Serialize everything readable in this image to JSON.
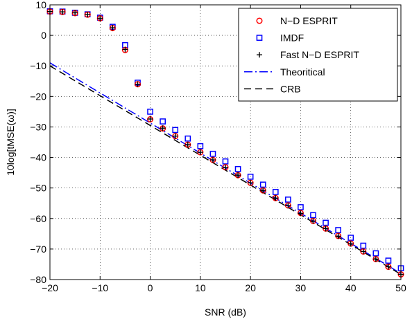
{
  "chart_data": {
    "type": "line",
    "xlabel": "SNR (dB)",
    "ylabel": "10log[tMSE(ω)]",
    "xlim": [
      -20,
      50
    ],
    "ylim": [
      -80,
      10
    ],
    "xticks": [
      -20,
      -10,
      0,
      10,
      20,
      30,
      40,
      50
    ],
    "yticks": [
      10,
      0,
      -10,
      -20,
      -30,
      -40,
      -50,
      -60,
      -70,
      -80
    ],
    "xtick_labels": [
      "−20",
      "−10",
      "0",
      "10",
      "20",
      "30",
      "40",
      "50"
    ],
    "ytick_labels": [
      "10",
      "0",
      "−10",
      "−20",
      "−30",
      "−40",
      "−50",
      "−60",
      "−70",
      "−80"
    ],
    "grid": true,
    "grid_style": "dotted",
    "legend_position": "top-right",
    "series": [
      {
        "name": "N−D ESPRIT",
        "marker": "circle",
        "color": "#ff0000",
        "x": [
          -20,
          -17.5,
          -15,
          -12.5,
          -10,
          -7.5,
          -5,
          -2.5,
          0,
          2.5,
          5,
          7.5,
          10,
          12.5,
          15,
          17.5,
          20,
          22.5,
          25,
          27.5,
          30,
          32.5,
          35,
          37.5,
          40,
          42.5,
          45,
          47.5,
          50
        ],
        "y": [
          7.8,
          7.7,
          7.3,
          6.8,
          5.6,
          2.4,
          -4.8,
          -16.0,
          -27.5,
          -30.5,
          -33.0,
          -35.8,
          -38.3,
          -40.8,
          -43.2,
          -45.8,
          -48.3,
          -50.8,
          -53.3,
          -55.7,
          -58.2,
          -60.8,
          -63.3,
          -65.7,
          -68.2,
          -70.8,
          -73.3,
          -75.8,
          -78.3
        ]
      },
      {
        "name": "IMDF",
        "marker": "square",
        "color": "#0000ff",
        "x": [
          -20,
          -17.5,
          -15,
          -12.5,
          -10,
          -7.5,
          -5,
          -2.5,
          0,
          2.5,
          5,
          7.5,
          10,
          12.5,
          15,
          17.5,
          20,
          22.5,
          25,
          27.5,
          30,
          32.5,
          35,
          37.5,
          40,
          42.5,
          45,
          47.5,
          50
        ],
        "y": [
          7.9,
          7.8,
          7.4,
          6.9,
          5.8,
          2.8,
          -3.2,
          -15.5,
          -25.0,
          -28.2,
          -31.0,
          -33.8,
          -36.3,
          -38.8,
          -41.3,
          -43.8,
          -46.3,
          -48.9,
          -51.3,
          -53.8,
          -56.3,
          -58.9,
          -61.4,
          -63.8,
          -66.3,
          -68.9,
          -71.4,
          -73.8,
          -76.3
        ]
      },
      {
        "name": "Fast N−D ESPRIT",
        "marker": "plus",
        "color": "#000000",
        "x": [
          -20,
          -17.5,
          -15,
          -12.5,
          -10,
          -7.5,
          -5,
          -2.5,
          0,
          2.5,
          5,
          7.5,
          10,
          12.5,
          15,
          17.5,
          20,
          22.5,
          25,
          27.5,
          30,
          32.5,
          35,
          37.5,
          40,
          42.5,
          45,
          47.5,
          50
        ],
        "y": [
          7.8,
          7.7,
          7.4,
          6.8,
          5.6,
          2.5,
          -4.6,
          -16.0,
          -27.4,
          -30.4,
          -33.0,
          -35.8,
          -38.3,
          -40.8,
          -43.3,
          -45.8,
          -48.3,
          -50.8,
          -53.3,
          -55.8,
          -58.3,
          -60.8,
          -63.3,
          -65.8,
          -68.3,
          -70.8,
          -73.3,
          -75.8,
          -78.3
        ]
      },
      {
        "name": "Theoritical",
        "line": "dashdot",
        "color": "#0000ff",
        "x": [
          -20,
          50
        ],
        "y": [
          -9.0,
          -78.0
        ]
      },
      {
        "name": "CRB",
        "line": "dashed",
        "color": "#000000",
        "x": [
          -20,
          50
        ],
        "y": [
          -10.0,
          -78.3
        ]
      }
    ]
  }
}
